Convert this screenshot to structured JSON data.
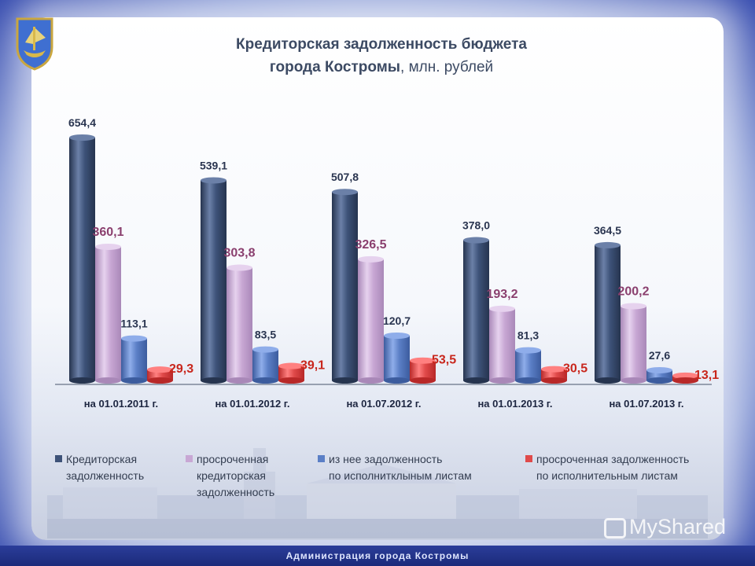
{
  "header": {
    "title_line1": "Кредиторская задолженность бюджета",
    "title_line2_bold": "города Костромы",
    "title_line2_unit": ", млн. рублей"
  },
  "footer": {
    "text": "Администрация города Костромы"
  },
  "watermark": {
    "text": "MyShared"
  },
  "emblem": {
    "icon": "city-coat-of-arms-icon"
  },
  "colors": {
    "series1": "#3d5278",
    "series2": "#c8a7d4",
    "series3": "#5b7fc6",
    "series4": "#e04a4a"
  },
  "chart_data": {
    "type": "bar",
    "categories": [
      "на 01.01.2011 г.",
      "на 01.01.2012 г.",
      "на 01.07.2012 г.",
      "на 01.01.2013 г.",
      "на 01.07.2013 г."
    ],
    "series": [
      {
        "name": "Кредиторская\nзадолженность",
        "values": [
          654.4,
          539.1,
          507.8,
          378.0,
          364.5
        ],
        "labels": [
          "654,4",
          "539,1",
          "507,8",
          "378,0",
          "364,5"
        ]
      },
      {
        "name": "просроченная\nкредиторская\nзадолженность",
        "values": [
          360.1,
          303.8,
          326.5,
          193.2,
          200.2
        ],
        "labels": [
          "360,1",
          "303,8",
          "326,5",
          "193,2",
          "200,2"
        ]
      },
      {
        "name": "из нее задолженность\nпо исполнитклыным листам",
        "values": [
          113.1,
          83.5,
          120.7,
          81.3,
          27.6
        ],
        "labels": [
          "113,1",
          "83,5",
          "120,7",
          "81,3",
          "27,6"
        ]
      },
      {
        "name": "просроченная задолженность\nпо исполнительным листам",
        "values": [
          29.3,
          39.1,
          53.5,
          30.5,
          13.1
        ],
        "labels": [
          "29,3",
          "39,1",
          "53,5",
          "30,5",
          "13,1"
        ]
      }
    ],
    "ylim": [
      0,
      700
    ],
    "grid": false,
    "legend": "bottom"
  }
}
